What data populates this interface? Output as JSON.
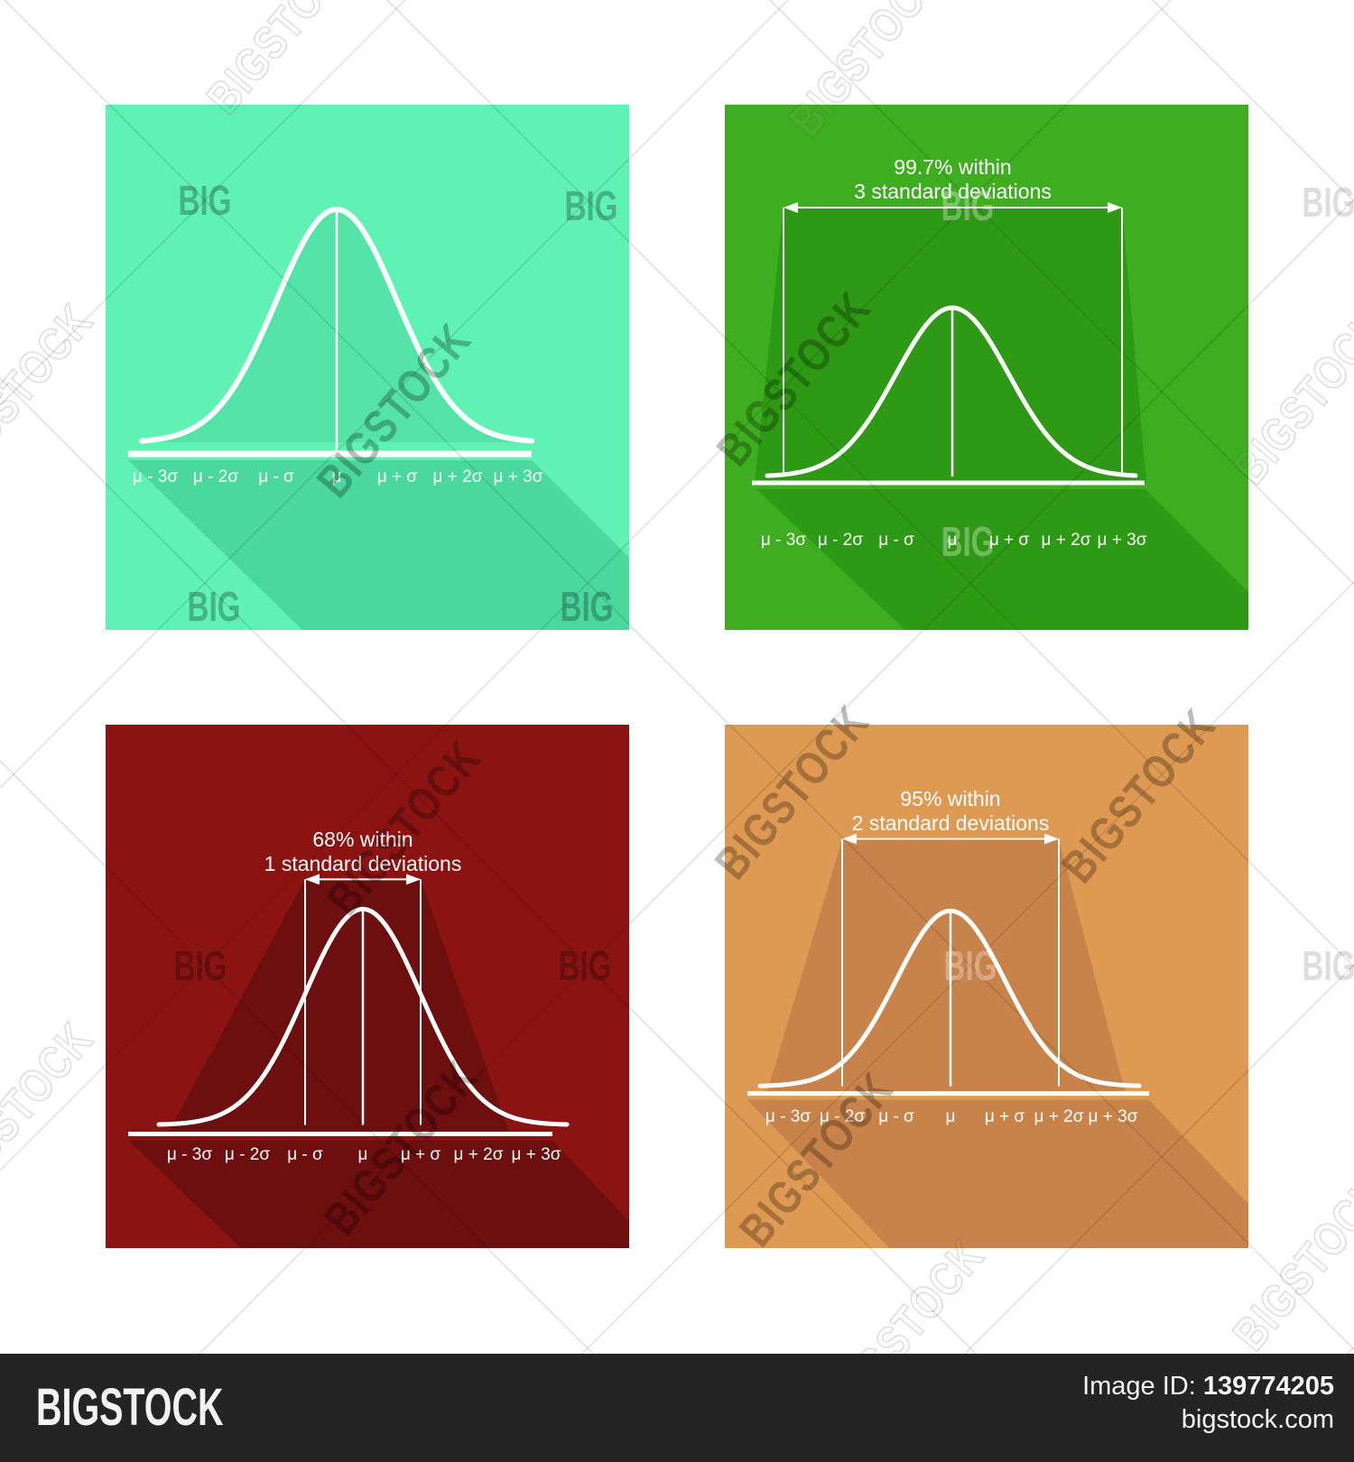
{
  "watermark": {
    "big": "BIG",
    "bigstock": "BIGSTOCK"
  },
  "panels": [
    {
      "name": "light-green-panel",
      "bg": "#5FF2B4",
      "shadow_color": "#4BD89D",
      "curve_fill": "#54E4A7",
      "curve_color": "#FFFFFF",
      "ticks": [
        "μ - 3σ",
        "μ - 2σ",
        "μ - σ",
        "μ",
        "μ + σ",
        "μ + 2σ",
        "μ + 3σ"
      ]
    },
    {
      "name": "green-panel",
      "bg": "#3EAD20",
      "shadow_color": "#2E9914",
      "curve_color": "#FFFFFF",
      "annotation_line1": "99.7% within",
      "annotation_line2": "3 standard deviations",
      "ticks": [
        "μ - 3σ",
        "μ - 2σ",
        "μ - σ",
        "μ",
        "μ + σ",
        "μ + 2σ",
        "μ + 3σ"
      ]
    },
    {
      "name": "dark-red-panel",
      "bg": "#8B1413",
      "shadow_color": "#6D0E0F",
      "curve_color": "#FFFFFF",
      "annotation_line1": "68% within",
      "annotation_line2": "1 standard deviations",
      "ticks": [
        "μ - 3σ",
        "μ - 2σ",
        "μ - σ",
        "μ",
        "μ + σ",
        "μ + 2σ",
        "μ + 3σ"
      ]
    },
    {
      "name": "orange-panel",
      "bg": "#DE9952",
      "shadow_color": "#C8834B",
      "curve_color": "#FFFFFF",
      "annotation_line1": "95% within",
      "annotation_line2": "2 standard deviations",
      "ticks": [
        "μ - 3σ",
        "μ - 2σ",
        "μ - σ",
        "μ",
        "μ + σ",
        "μ + 2σ",
        "μ + 3σ"
      ]
    }
  ],
  "footer": {
    "logo": "BIGSTOCK",
    "image_id_label": "Image ID:",
    "image_id": "139774205",
    "site": "bigstock.com"
  },
  "chart_data": [
    {
      "type": "line",
      "subtype": "normal-distribution-curve",
      "panel": "top-left",
      "x_ticks": [
        "μ - 3σ",
        "μ - 2σ",
        "μ - σ",
        "μ",
        "μ + σ",
        "μ + 2σ",
        "μ + 3σ"
      ],
      "distribution": {
        "mean_label": "μ",
        "sd_label": "σ",
        "mean": 0,
        "sd": 1
      },
      "x_range_sd": [
        -3.2,
        3.2
      ],
      "curve_profile_sd": [
        0,
        1,
        2,
        3
      ],
      "curve_profile_relative_height": [
        1,
        0.607,
        0.135,
        0.011
      ],
      "annotation": null,
      "background": "#5FF2B4",
      "legend": false,
      "grid": false
    },
    {
      "type": "line",
      "subtype": "normal-distribution-curve",
      "panel": "top-right",
      "x_ticks": [
        "μ - 3σ",
        "μ - 2σ",
        "μ - σ",
        "μ",
        "μ + σ",
        "μ + 2σ",
        "μ + 3σ"
      ],
      "distribution": {
        "mean_label": "μ",
        "sd_label": "σ",
        "mean": 0,
        "sd": 1
      },
      "x_range_sd": [
        -3.3,
        3.3
      ],
      "curve_profile_sd": [
        0,
        1,
        2,
        3
      ],
      "curve_profile_relative_height": [
        1,
        0.607,
        0.135,
        0.011
      ],
      "annotation": {
        "line1": "99.7% within",
        "line2": "3 standard deviations",
        "coverage_pct": 99.7,
        "range_sd": [
          -3,
          3
        ]
      },
      "background": "#3EAD20",
      "legend": false,
      "grid": false
    },
    {
      "type": "line",
      "subtype": "normal-distribution-curve",
      "panel": "bottom-left",
      "x_ticks": [
        "μ - 3σ",
        "μ - 2σ",
        "μ - σ",
        "μ",
        "μ + σ",
        "μ + 2σ",
        "μ + 3σ"
      ],
      "distribution": {
        "mean_label": "μ",
        "sd_label": "σ",
        "mean": 0,
        "sd": 1
      },
      "x_range_sd": [
        -3.5,
        3.5
      ],
      "curve_profile_sd": [
        0,
        1,
        2,
        3
      ],
      "curve_profile_relative_height": [
        1,
        0.607,
        0.135,
        0.011
      ],
      "annotation": {
        "line1": "68% within",
        "line2": "1 standard deviations",
        "coverage_pct": 68,
        "range_sd": [
          -1,
          1
        ]
      },
      "background": "#8B1413",
      "legend": false,
      "grid": false
    },
    {
      "type": "line",
      "subtype": "normal-distribution-curve",
      "panel": "bottom-right",
      "x_ticks": [
        "μ - 3σ",
        "μ - 2σ",
        "μ - σ",
        "μ",
        "μ + σ",
        "μ + 2σ",
        "μ + 3σ"
      ],
      "distribution": {
        "mean_label": "μ",
        "sd_label": "σ",
        "mean": 0,
        "sd": 1
      },
      "x_range_sd": [
        -3.5,
        3.5
      ],
      "curve_profile_sd": [
        0,
        1,
        2,
        3
      ],
      "curve_profile_relative_height": [
        1,
        0.607,
        0.135,
        0.011
      ],
      "annotation": {
        "line1": "95% within",
        "line2": "2 standard deviations",
        "coverage_pct": 95,
        "range_sd": [
          -2,
          2
        ]
      },
      "background": "#DE9952",
      "legend": false,
      "grid": false
    }
  ]
}
